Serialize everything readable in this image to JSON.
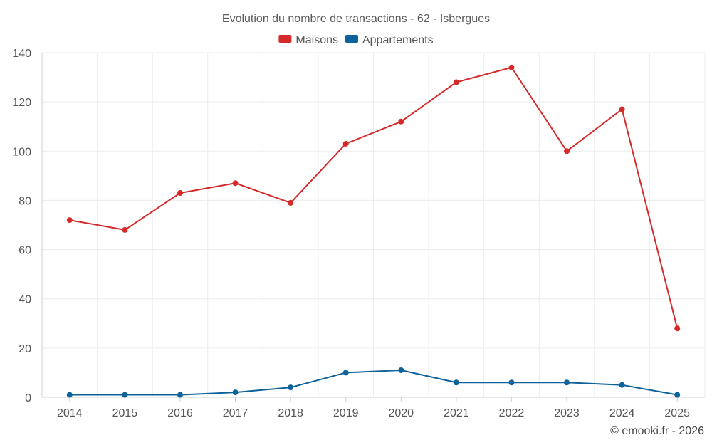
{
  "chart_data": {
    "type": "line",
    "title": "Evolution du nombre de transactions - 62 - Isbergues",
    "categories": [
      "2014",
      "2015",
      "2016",
      "2017",
      "2018",
      "2019",
      "2020",
      "2021",
      "2022",
      "2023",
      "2024",
      "2025"
    ],
    "series": [
      {
        "name": "Maisons",
        "color": "#d42a2a",
        "values": [
          72,
          68,
          83,
          87,
          79,
          103,
          112,
          128,
          134,
          100,
          117,
          28
        ]
      },
      {
        "name": "Appartements",
        "color": "#0d6299",
        "values": [
          1,
          1,
          1,
          2,
          4,
          10,
          11,
          6,
          6,
          6,
          5,
          1
        ]
      }
    ],
    "ylim": [
      0,
      140
    ],
    "yticks": [
      0,
      20,
      40,
      60,
      80,
      100,
      120,
      140
    ],
    "xlabel": "",
    "ylabel": "",
    "grid": true,
    "legend_position": "top-center"
  },
  "credit": "© emooki.fr - 2026"
}
